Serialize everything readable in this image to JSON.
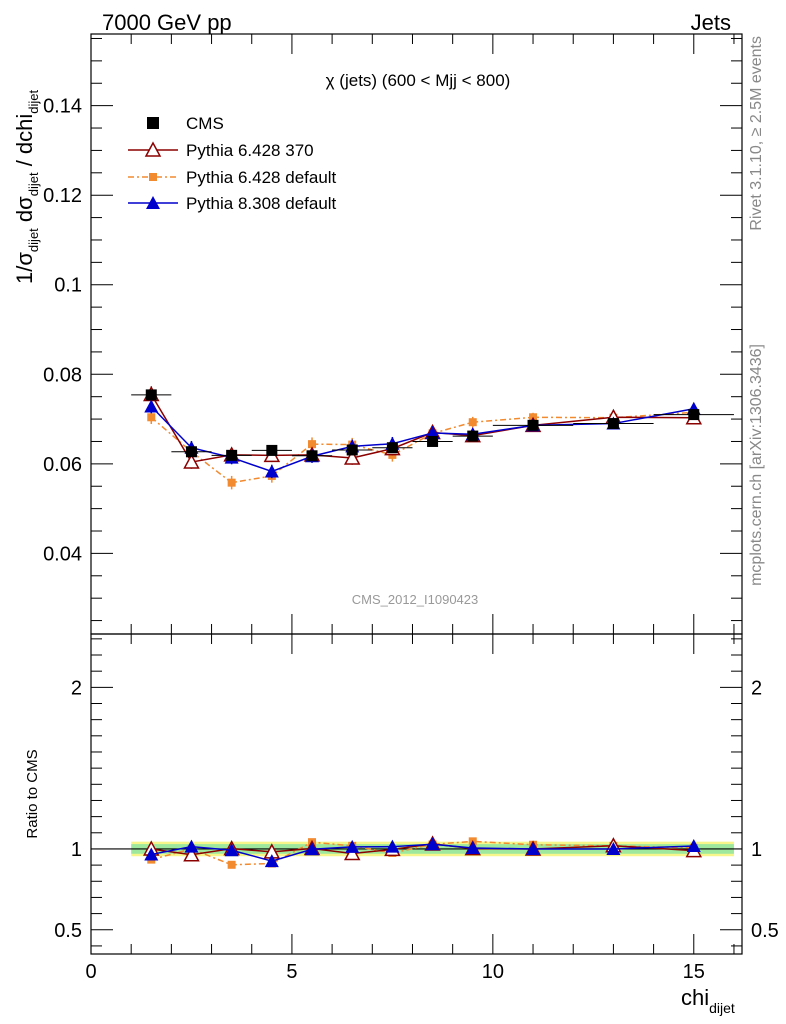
{
  "header": {
    "left": "7000 GeV pp",
    "right": "Jets"
  },
  "side_labels": {
    "rivet": "Rivet 3.1.10, ≥ 2.5M events",
    "mcplots": "mcplots.cern.ch [arXiv:1306.3436]"
  },
  "chart_data": [
    {
      "type": "scatter",
      "panel": "main",
      "title": "χ (jets) (600 < Mjj <  800)",
      "watermark": "CMS_2012_I1090423",
      "ylabel_parts": {
        "a": "1/σ",
        "a_sub": "dijet",
        "b": " dσ",
        "b_sub": "dijet",
        "c": " / dchi",
        "c_sub": "dijet"
      },
      "xlabel_parts": {
        "main": "chi",
        "sub": "dijet"
      },
      "xlim": [
        0,
        16.2
      ],
      "ylim": [
        0.022,
        0.156
      ],
      "x_ticks": [
        0,
        5,
        10,
        15
      ],
      "y_ticks": [
        0.04,
        0.06,
        0.08,
        0.1,
        0.12,
        0.14
      ],
      "y_tick_labels": [
        "0.04",
        "0.06",
        "0.08",
        "0.1",
        "0.12",
        "0.14"
      ],
      "x_tick_labels": [
        "0",
        "5",
        "10",
        "15"
      ],
      "legend_position": "top-left",
      "series": [
        {
          "name": "CMS",
          "color": "#000000",
          "marker": "square",
          "x": [
            1.5,
            2.5,
            3.5,
            4.5,
            5.5,
            6.5,
            7.5,
            8.5,
            9.5,
            11.0,
            13.0,
            15.0
          ],
          "x_err": [
            0.5,
            0.5,
            0.5,
            0.5,
            0.5,
            0.5,
            0.5,
            0.5,
            0.5,
            1.0,
            1.0,
            1.0
          ],
          "y": [
            0.0754,
            0.0627,
            0.0619,
            0.063,
            0.0618,
            0.0631,
            0.0636,
            0.065,
            0.0662,
            0.0686,
            0.069,
            0.071
          ]
        },
        {
          "name": "Pythia 6.428 370",
          "color": "#8b0000",
          "marker": "open-triangle",
          "x": [
            1.5,
            2.5,
            3.5,
            4.5,
            5.5,
            6.5,
            7.5,
            8.5,
            9.5,
            11.0,
            13.0,
            15.0
          ],
          "y": [
            0.0755,
            0.0604,
            0.062,
            0.0619,
            0.062,
            0.0613,
            0.0634,
            0.067,
            0.0663,
            0.0686,
            0.0704,
            0.0703
          ],
          "err": [
            0.0018,
            0.0015,
            0.0015,
            0.0015,
            0.0015,
            0.0015,
            0.0015,
            0.0015,
            0.0012,
            0.001,
            0.001,
            0.001
          ]
        },
        {
          "name": "Pythia 6.428 default",
          "color": "#f28a30",
          "marker": "filled-square",
          "x": [
            1.5,
            2.5,
            3.5,
            4.5,
            5.5,
            6.5,
            7.5,
            8.5,
            9.5,
            11.0,
            13.0,
            15.0
          ],
          "y": [
            0.0704,
            0.0627,
            0.0558,
            0.0573,
            0.0644,
            0.0643,
            0.062,
            0.0668,
            0.0693,
            0.0704,
            0.0703,
            0.0715
          ],
          "err": [
            0.0015,
            0.0015,
            0.0015,
            0.0015,
            0.0015,
            0.0015,
            0.0015,
            0.0015,
            0.0012,
            0.001,
            0.001,
            0.001
          ]
        },
        {
          "name": "Pythia 8.308 default",
          "color": "#0000cc",
          "marker": "filled-triangle",
          "x": [
            1.5,
            2.5,
            3.5,
            4.5,
            5.5,
            6.5,
            7.5,
            8.5,
            9.5,
            11.0,
            13.0,
            15.0
          ],
          "y": [
            0.0728,
            0.0636,
            0.0614,
            0.0583,
            0.0617,
            0.0639,
            0.0645,
            0.0669,
            0.0666,
            0.0686,
            0.069,
            0.0723
          ],
          "err": [
            0.0015,
            0.0015,
            0.0015,
            0.0015,
            0.0015,
            0.0015,
            0.0015,
            0.0015,
            0.0012,
            0.001,
            0.001,
            0.001
          ]
        }
      ]
    },
    {
      "type": "scatter",
      "panel": "ratio",
      "ylabel": "Ratio to CMS",
      "xlim": [
        0,
        16.2
      ],
      "ylim": [
        0.35,
        2.33
      ],
      "y_ticks": [
        0.5,
        1,
        2
      ],
      "y_tick_labels": [
        "0.5",
        "1",
        "2"
      ],
      "band_yellow": [
        0.955,
        1.045
      ],
      "band_green": [
        0.97,
        1.03
      ],
      "band_xrange": [
        1.0,
        16.0
      ],
      "series": [
        {
          "name": "Pythia 6.428 370",
          "x": [
            1.5,
            2.5,
            3.5,
            4.5,
            5.5,
            6.5,
            7.5,
            8.5,
            9.5,
            11.0,
            13.0,
            15.0
          ],
          "y": [
            1.0,
            0.964,
            1.002,
            0.982,
            1.003,
            0.972,
            0.997,
            1.031,
            1.002,
            1.0,
            1.02,
            0.99
          ]
        },
        {
          "name": "Pythia 6.428 default",
          "x": [
            1.5,
            2.5,
            3.5,
            4.5,
            5.5,
            6.5,
            7.5,
            8.5,
            9.5,
            11.0,
            13.0,
            15.0
          ],
          "y": [
            0.934,
            1.0,
            0.902,
            0.91,
            1.042,
            1.019,
            0.975,
            1.028,
            1.047,
            1.026,
            1.019,
            1.007
          ]
        },
        {
          "name": "Pythia 8.308 default",
          "x": [
            1.5,
            2.5,
            3.5,
            4.5,
            5.5,
            6.5,
            7.5,
            8.5,
            9.5,
            11.0,
            13.0,
            15.0
          ],
          "y": [
            0.966,
            1.014,
            0.992,
            0.925,
            0.998,
            1.013,
            1.014,
            1.029,
            1.006,
            1.0,
            1.0,
            1.018
          ]
        }
      ]
    }
  ]
}
